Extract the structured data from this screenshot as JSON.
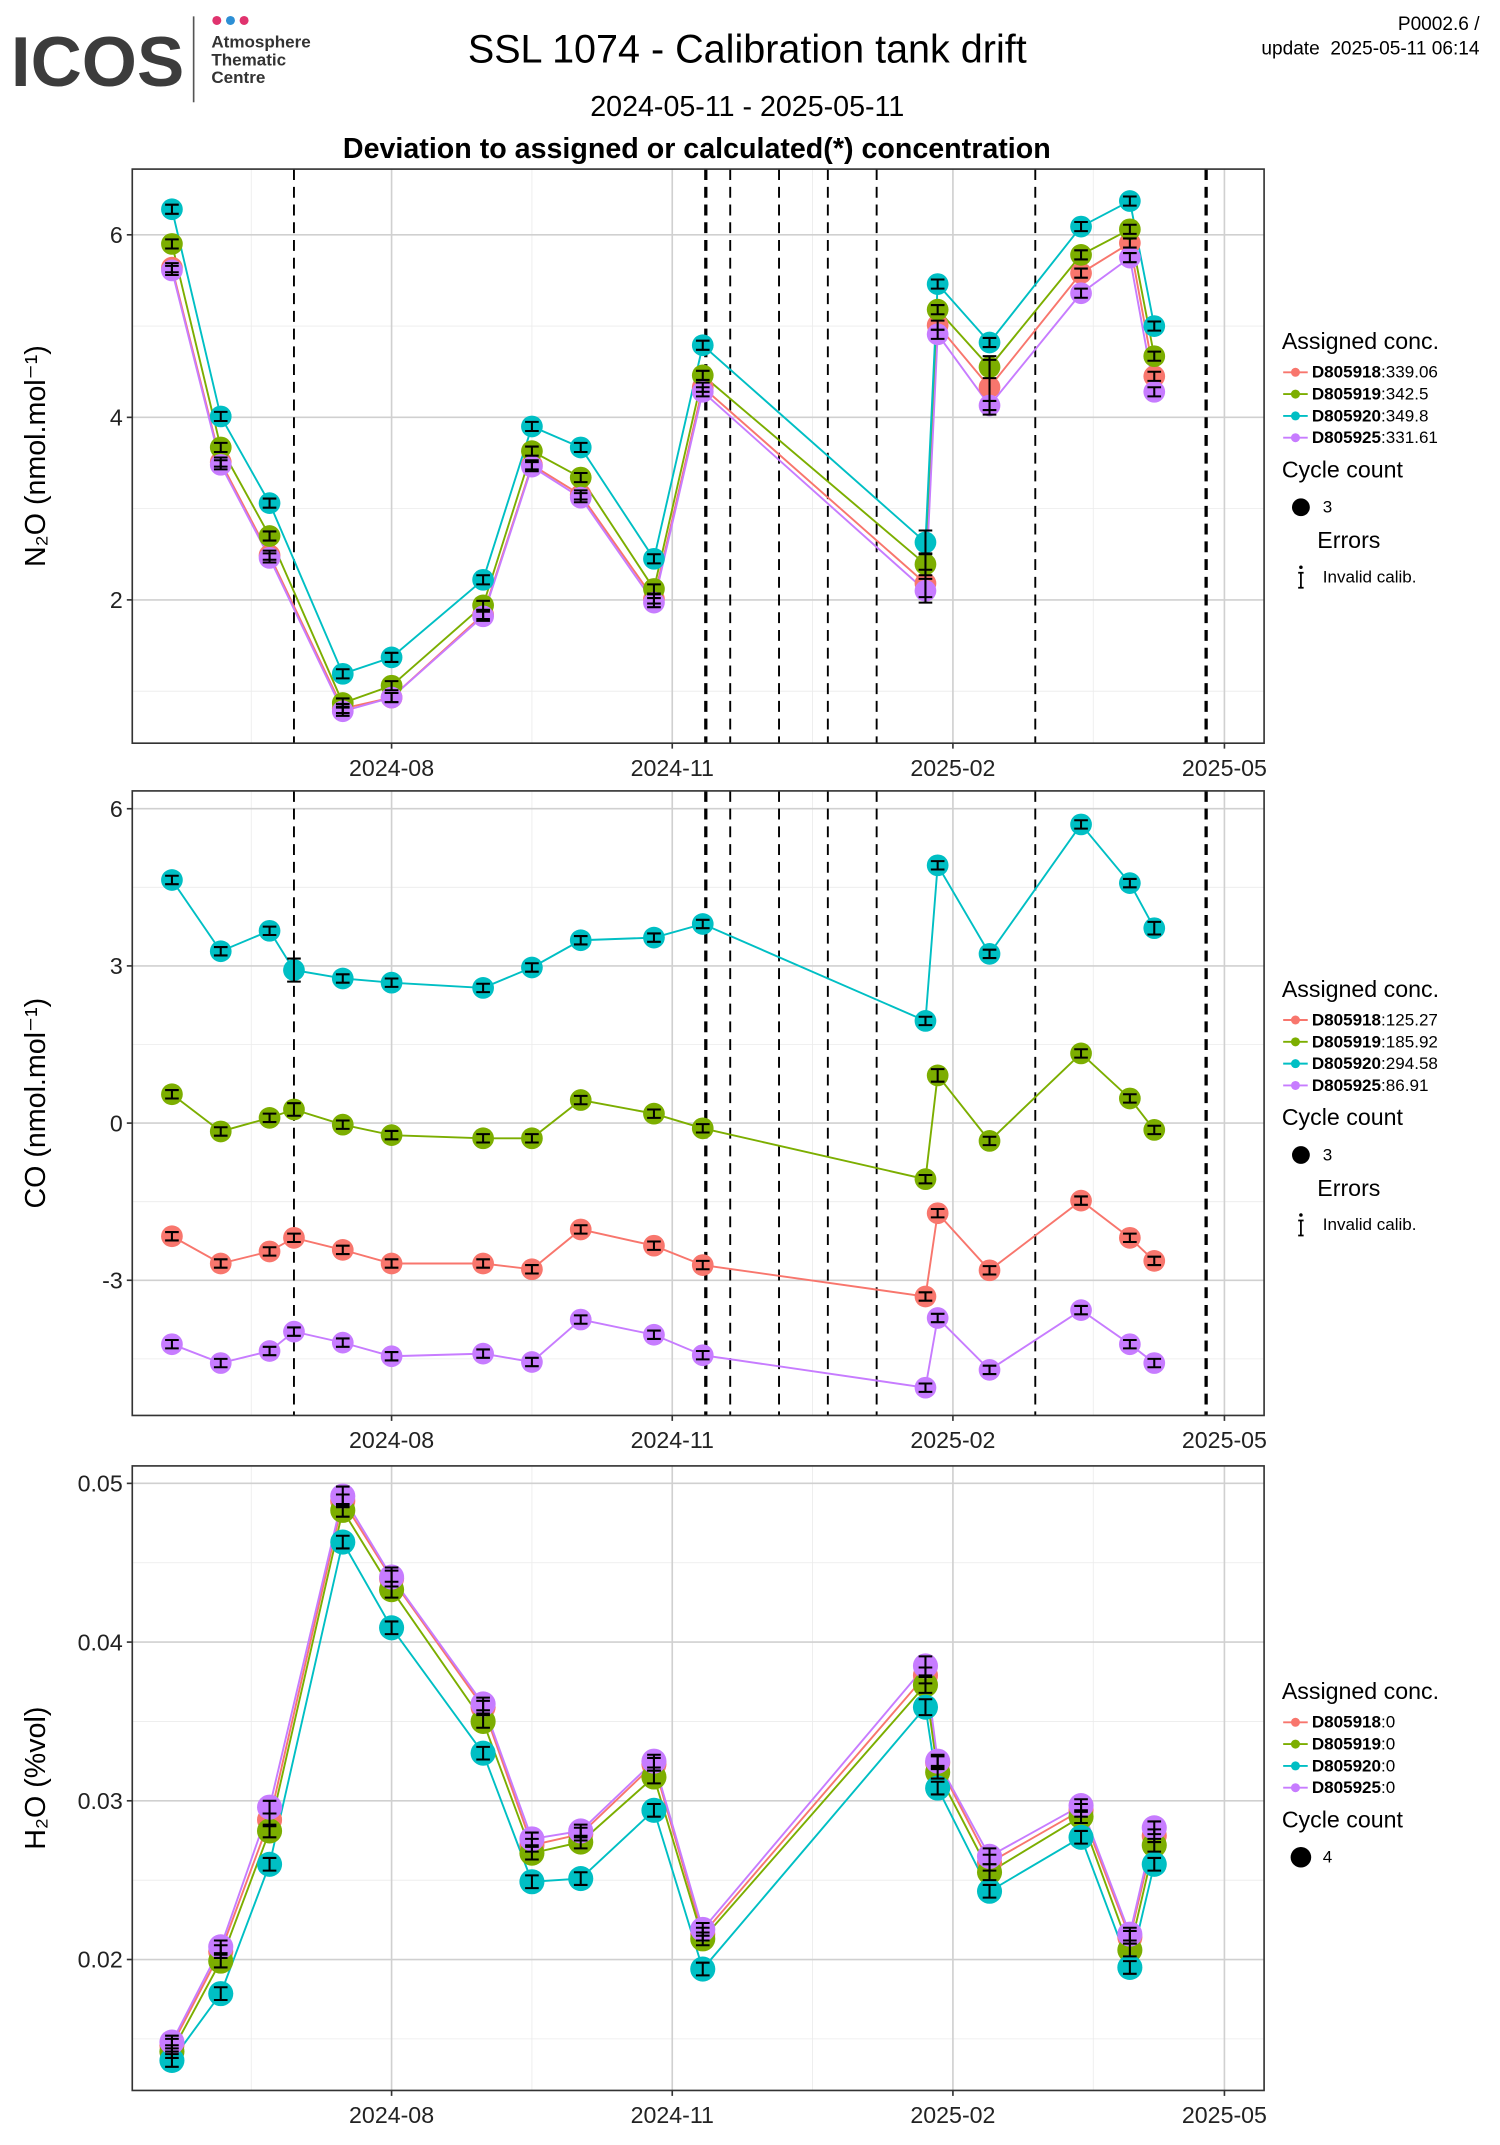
{
  "header": {
    "logo": "ICOS",
    "logo_lines": [
      "Atmosphere",
      "Thematic",
      "Centre"
    ],
    "title": "SSL 1074 - Calibration tank drift",
    "period": "2024-05-11 - 2025-05-11",
    "heading": "Deviation to assigned or calculated(*) concentration",
    "version": "P0002.6 /",
    "update": "update  2025-05-11 06:14"
  },
  "chart_data": [
    {
      "type": "line",
      "ylabel": "N₂O (nmol.mol⁻¹)",
      "x": [
        "2024-05-21",
        "2024-06-06",
        "2024-06-22",
        "2024-07-16",
        "2024-08-01",
        "2024-08-31",
        "2024-09-16",
        "2024-10-02",
        "2024-10-26",
        "2024-11-11",
        "2025-01-23",
        "2025-01-27",
        "2025-02-13",
        "2025-03-15",
        "2025-03-31",
        "2025-04-08"
      ],
      "xlim": [
        "2024-05-08",
        "2025-05-14"
      ],
      "xticks": [
        {
          "value": "2024-08-01",
          "label": "2024-08"
        },
        {
          "value": "2024-11-01",
          "label": "2024-11"
        },
        {
          "value": "2025-02-01",
          "label": "2025-02"
        },
        {
          "value": "2025-05-01",
          "label": "2025-05"
        }
      ],
      "ylim": [
        0.43,
        6.72
      ],
      "yticks": [
        2,
        4,
        6
      ],
      "grid": true,
      "vlines": [
        {
          "x": "2024-06-30",
          "bold": false
        },
        {
          "x": "2024-11-12",
          "bold": true
        },
        {
          "x": "2024-11-20",
          "bold": false
        },
        {
          "x": "2024-12-06",
          "bold": false
        },
        {
          "x": "2024-12-22",
          "bold": false
        },
        {
          "x": "2025-01-07",
          "bold": false
        },
        {
          "x": "2025-02-28",
          "bold": false
        },
        {
          "x": "2025-04-25",
          "bold": true
        }
      ],
      "series": [
        {
          "name": "D805918",
          "assigned": 339.06,
          "color": "#F8766D",
          "values": [
            5.64,
            3.51,
            2.49,
            0.81,
            0.93,
            1.84,
            3.48,
            3.15,
            2.01,
            4.33,
            2.18,
            5.01,
            4.33,
            5.58,
            5.91,
            4.45
          ],
          "errors": [
            0.05,
            0.05,
            0.05,
            0.05,
            0.05,
            0.05,
            0.05,
            0.05,
            0.05,
            0.05,
            0.15,
            0.05,
            0.3,
            0.05,
            0.05,
            0.05
          ]
        },
        {
          "name": "D805919",
          "assigned": 342.5,
          "color": "#7CAE00",
          "values": [
            5.9,
            3.67,
            2.7,
            0.87,
            1.06,
            1.94,
            3.63,
            3.34,
            2.12,
            4.46,
            2.39,
            5.18,
            4.55,
            5.78,
            6.06,
            4.67
          ],
          "errors": [
            0.05,
            0.05,
            0.05,
            0.05,
            0.05,
            0.05,
            0.05,
            0.05,
            0.05,
            0.05,
            0.12,
            0.05,
            0.12,
            0.05,
            0.05,
            0.05
          ]
        },
        {
          "name": "D805920",
          "assigned": 349.8,
          "color": "#00BFC4",
          "values": [
            6.28,
            4.01,
            3.06,
            1.19,
            1.37,
            2.22,
            3.9,
            3.67,
            2.45,
            4.79,
            2.63,
            5.46,
            4.82,
            6.09,
            6.37,
            5.0
          ],
          "errors": [
            0.05,
            0.05,
            0.05,
            0.05,
            0.05,
            0.05,
            0.05,
            0.05,
            0.05,
            0.05,
            0.13,
            0.05,
            0.05,
            0.05,
            0.05,
            0.05
          ]
        },
        {
          "name": "D805925",
          "assigned": 331.61,
          "color": "#C77CFF",
          "values": [
            5.61,
            3.48,
            2.46,
            0.78,
            0.93,
            1.82,
            3.46,
            3.12,
            1.97,
            4.28,
            2.1,
            4.91,
            4.13,
            5.36,
            5.75,
            4.28
          ],
          "errors": [
            0.05,
            0.05,
            0.05,
            0.05,
            0.05,
            0.05,
            0.05,
            0.05,
            0.05,
            0.05,
            0.13,
            0.05,
            0.05,
            0.05,
            0.05,
            0.05
          ]
        }
      ],
      "legend_title": "Assigned conc.",
      "size_title": "Cycle count",
      "cycle_count": 3,
      "errors_title": "Errors",
      "errors_label": "Invalid calib."
    },
    {
      "type": "line",
      "ylabel": "CO (nmol.mol⁻¹)",
      "x": [
        "2024-05-21",
        "2024-06-06",
        "2024-06-22",
        "2024-06-30",
        "2024-07-16",
        "2024-08-01",
        "2024-08-31",
        "2024-09-16",
        "2024-10-02",
        "2024-10-26",
        "2024-11-11",
        "2025-01-23",
        "2025-01-27",
        "2025-02-13",
        "2025-03-15",
        "2025-03-31",
        "2025-04-08"
      ],
      "xlim": [
        "2024-05-08",
        "2025-05-14"
      ],
      "xticks": [
        {
          "value": "2024-08-01",
          "label": "2024-08"
        },
        {
          "value": "2024-11-01",
          "label": "2024-11"
        },
        {
          "value": "2025-02-01",
          "label": "2025-02"
        },
        {
          "value": "2025-05-01",
          "label": "2025-05"
        }
      ],
      "ylim": [
        -5.58,
        6.34
      ],
      "yticks": [
        -3,
        0,
        3,
        6
      ],
      "grid": true,
      "vlines": [
        {
          "x": "2024-06-30",
          "bold": false
        },
        {
          "x": "2024-11-12",
          "bold": true
        },
        {
          "x": "2024-11-20",
          "bold": false
        },
        {
          "x": "2024-12-06",
          "bold": false
        },
        {
          "x": "2024-12-22",
          "bold": false
        },
        {
          "x": "2025-01-07",
          "bold": false
        },
        {
          "x": "2025-02-28",
          "bold": false
        },
        {
          "x": "2025-04-25",
          "bold": true
        }
      ],
      "series": [
        {
          "name": "D805918",
          "assigned": 125.27,
          "color": "#F8766D",
          "values": [
            -2.16,
            -2.68,
            -2.45,
            -2.19,
            -2.42,
            -2.68,
            -2.68,
            -2.79,
            -2.03,
            -2.34,
            -2.71,
            -3.31,
            -1.72,
            -2.81,
            -1.48,
            -2.19,
            -2.63
          ],
          "errors": [
            0.08,
            0.08,
            0.08,
            0.08,
            0.08,
            0.08,
            0.08,
            0.08,
            0.08,
            0.08,
            0.08,
            0.08,
            0.08,
            0.08,
            0.08,
            0.08,
            0.08
          ]
        },
        {
          "name": "D805919",
          "assigned": 185.92,
          "color": "#7CAE00",
          "values": [
            0.55,
            -0.16,
            0.1,
            0.26,
            -0.03,
            -0.23,
            -0.29,
            -0.29,
            0.44,
            0.18,
            -0.1,
            -1.07,
            0.91,
            -0.34,
            1.33,
            0.47,
            -0.13
          ],
          "errors": [
            0.08,
            0.08,
            0.08,
            0.12,
            0.08,
            0.08,
            0.08,
            0.08,
            0.08,
            0.08,
            0.08,
            0.08,
            0.12,
            0.08,
            0.08,
            0.08,
            0.08
          ]
        },
        {
          "name": "D805920",
          "assigned": 294.58,
          "color": "#00BFC4",
          "values": [
            4.64,
            3.28,
            3.67,
            2.92,
            2.76,
            2.68,
            2.58,
            2.97,
            3.49,
            3.54,
            3.8,
            1.95,
            4.92,
            3.23,
            5.7,
            4.58,
            3.72
          ],
          "errors": [
            0.08,
            0.08,
            0.08,
            0.22,
            0.08,
            0.08,
            0.08,
            0.08,
            0.08,
            0.08,
            0.08,
            0.08,
            0.08,
            0.08,
            0.08,
            0.08,
            0.12
          ]
        },
        {
          "name": "D805925",
          "assigned": 86.91,
          "color": "#C77CFF",
          "values": [
            -4.22,
            -4.58,
            -4.35,
            -3.98,
            -4.19,
            -4.45,
            -4.4,
            -4.56,
            -3.75,
            -4.04,
            -4.43,
            -5.05,
            -3.72,
            -4.71,
            -3.57,
            -4.22,
            -4.58
          ],
          "errors": [
            0.08,
            0.08,
            0.08,
            0.08,
            0.08,
            0.08,
            0.08,
            0.08,
            0.08,
            0.08,
            0.08,
            0.08,
            0.08,
            0.08,
            0.08,
            0.08,
            0.08
          ]
        }
      ],
      "legend_title": "Assigned conc.",
      "size_title": "Cycle count",
      "cycle_count": 3,
      "errors_title": "Errors",
      "errors_label": "Invalid calib."
    },
    {
      "type": "line",
      "ylabel": "H₂O (%vol)",
      "x": [
        "2024-05-21",
        "2024-06-06",
        "2024-06-22",
        "2024-07-16",
        "2024-08-01",
        "2024-08-31",
        "2024-09-16",
        "2024-10-02",
        "2024-10-26",
        "2024-11-11",
        "2025-01-23",
        "2025-01-27",
        "2025-02-13",
        "2025-03-15",
        "2025-03-31",
        "2025-04-08"
      ],
      "xlim": [
        "2024-05-08",
        "2025-05-14"
      ],
      "xticks": [
        {
          "value": "2024-08-01",
          "label": "2024-08"
        },
        {
          "value": "2024-11-01",
          "label": "2024-11"
        },
        {
          "value": "2025-02-01",
          "label": "2025-02"
        },
        {
          "value": "2025-05-01",
          "label": "2025-05"
        }
      ],
      "ylim": [
        0.01175,
        0.0511
      ],
      "yticks": [
        0.02,
        0.03,
        0.04,
        0.05
      ],
      "grid": true,
      "series": [
        {
          "name": "D805918",
          "assigned": 0,
          "color": "#F8766D",
          "values": [
            0.0146,
            0.0205,
            0.0288,
            0.0489,
            0.044,
            0.0359,
            0.0272,
            0.0279,
            0.0323,
            0.0216,
            0.0379,
            0.0324,
            0.0261,
            0.0294,
            0.0214,
            0.0278
          ],
          "errors": [
            0.0004,
            0.0004,
            0.0004,
            0.0004,
            0.0005,
            0.0004,
            0.0004,
            0.0004,
            0.0004,
            0.0004,
            0.0005,
            0.0004,
            0.0005,
            0.0004,
            0.0004,
            0.0004
          ]
        },
        {
          "name": "D805919",
          "assigned": 0,
          "color": "#7CAE00",
          "values": [
            0.0142,
            0.0199,
            0.0281,
            0.0483,
            0.0433,
            0.035,
            0.0267,
            0.0274,
            0.0315,
            0.0213,
            0.0373,
            0.0318,
            0.0255,
            0.029,
            0.0206,
            0.0272
          ],
          "errors": [
            0.0004,
            0.0004,
            0.0004,
            0.0004,
            0.0005,
            0.0004,
            0.0004,
            0.0004,
            0.0004,
            0.0004,
            0.0005,
            0.0004,
            0.0005,
            0.0004,
            0.0004,
            0.0004
          ]
        },
        {
          "name": "D805920",
          "assigned": 0,
          "color": "#00BFC4",
          "values": [
            0.01364,
            0.01785,
            0.026,
            0.0463,
            0.0409,
            0.033,
            0.0249,
            0.0251,
            0.0294,
            0.0194,
            0.0359,
            0.0308,
            0.0243,
            0.0277,
            0.0195,
            0.026
          ],
          "errors": [
            0.0004,
            0.0004,
            0.0004,
            0.0004,
            0.0004,
            0.0004,
            0.0004,
            0.0004,
            0.0004,
            0.0004,
            0.0005,
            0.0004,
            0.0004,
            0.0004,
            0.0004,
            0.0004
          ]
        },
        {
          "name": "D805925",
          "assigned": 0,
          "color": "#C77CFF",
          "values": [
            0.0148,
            0.0208,
            0.0296,
            0.0492,
            0.0441,
            0.0361,
            0.0276,
            0.0281,
            0.0325,
            0.0219,
            0.0385,
            0.0325,
            0.0265,
            0.0297,
            0.0216,
            0.0283
          ],
          "errors": [
            0.0004,
            0.0004,
            0.0004,
            0.0006,
            0.0006,
            0.0004,
            0.0004,
            0.0004,
            0.0004,
            0.0004,
            0.0006,
            0.0004,
            0.0005,
            0.0004,
            0.0004,
            0.0004
          ]
        }
      ],
      "legend_title": "Assigned conc.",
      "size_title": "Cycle count",
      "cycle_count": 4
    }
  ]
}
